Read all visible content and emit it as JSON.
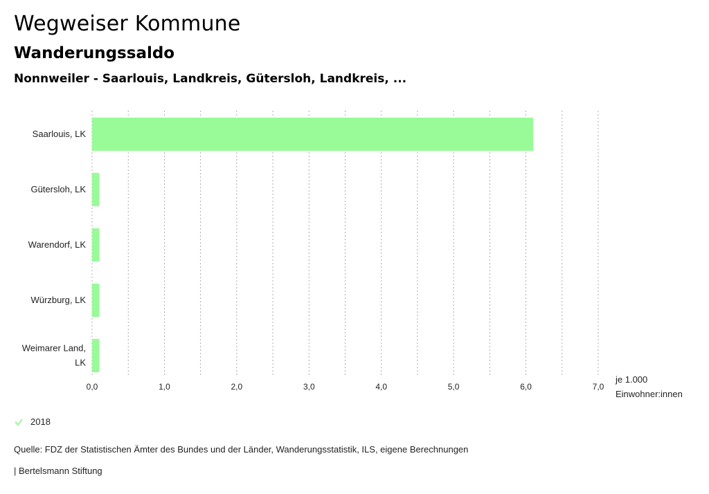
{
  "header": {
    "title": "Wegweiser Kommune",
    "subtitle": "Wanderungssaldo",
    "region": "Nonnweiler - Saarlouis, Landkreis, Gütersloh, Landkreis, ..."
  },
  "chart_data": {
    "type": "bar",
    "orientation": "horizontal",
    "categories": [
      [
        "Saarlouis, LK"
      ],
      [
        "Gütersloh, LK"
      ],
      [
        "Warendorf, LK"
      ],
      [
        "Würzburg, LK"
      ],
      [
        "Weimarer Land,",
        "LK"
      ]
    ],
    "series": [
      {
        "name": "2018",
        "values": [
          6.1,
          0.1,
          0.1,
          0.1,
          0.1
        ],
        "color": "#98fb98"
      }
    ],
    "xlim": [
      0,
      7.0
    ],
    "xticks": [
      "0,0",
      "1,0",
      "2,0",
      "3,0",
      "4,0",
      "5,0",
      "6,0",
      "7,0"
    ],
    "xlabel": [
      "je 1.000",
      "Einwohner:innen"
    ],
    "grid": true
  },
  "legend": {
    "label": "2018",
    "icon": "check-icon",
    "color": "#98fb98"
  },
  "footer": {
    "source": "Quelle: FDZ der Statistischen Ämter des Bundes und der Länder, Wanderungsstatistik, ILS, eigene Berechnungen",
    "credit": "| Bertelsmann Stiftung"
  }
}
